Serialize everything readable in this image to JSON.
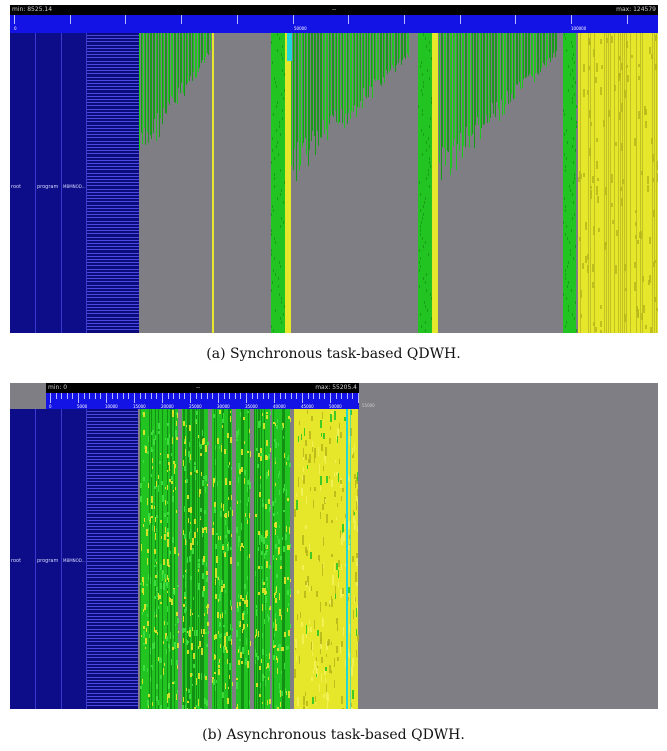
{
  "panel_a": {
    "min_label": "min: 8525.14",
    "mid_label": "--",
    "max_label": "max: 124579",
    "tick_labels": [
      "0",
      "50000",
      "100000"
    ],
    "levels": [
      "root",
      "program",
      "MBMNOD..."
    ],
    "caption": "(a) Synchronous task-based QDWH."
  },
  "panel_b": {
    "min_label": "min: 0",
    "mid_label": "--",
    "max_label": "max: 55205.4",
    "tick_labels": [
      "0",
      "5000",
      "10000",
      "15000",
      "20000",
      "25000",
      "30000",
      "35000",
      "40000",
      "45000",
      "50000",
      "55000"
    ],
    "levels": [
      "root",
      "program",
      "MBMNOD..."
    ],
    "caption": "(b) Asynchronous task-based QDWH."
  },
  "colors": {
    "background_gray": "#7e7e84",
    "axis_blue": "#1313e6",
    "level_navy": "#0d0d8a",
    "task_green": "#22c422",
    "task_yellow": "#e6e62a",
    "task_cyan": "#20d8d8"
  }
}
